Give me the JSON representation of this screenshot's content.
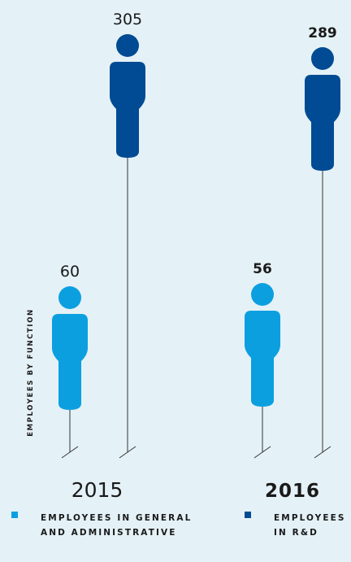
{
  "colors": {
    "general_admin": "#0b9fe0",
    "rnd": "#004b93",
    "background": "#e4f1f6",
    "line": "#333333",
    "text": "#1a1a1a"
  },
  "chart_data": {
    "type": "pictogram",
    "title": "EMPLOYEES BY FUNCTION",
    "categories": [
      "2015",
      "2016"
    ],
    "series": [
      {
        "name": "EMPLOYEES IN GENERAL AND ADMINISTRATIVE",
        "values": [
          60,
          56
        ],
        "color": "#0b9fe0"
      },
      {
        "name": "EMPLOYEES IN R&D",
        "values": [
          305,
          289
        ],
        "color": "#004b93"
      }
    ],
    "highlighted_category": "2016"
  },
  "legend": [
    {
      "line1": "EMPLOYEES IN GENERAL",
      "line2": "AND ADMINISTRATIVE",
      "color": "#0b9fe0"
    },
    {
      "line1": "EMPLOYEES",
      "line2": "IN R&D",
      "color": "#004b93"
    }
  ]
}
